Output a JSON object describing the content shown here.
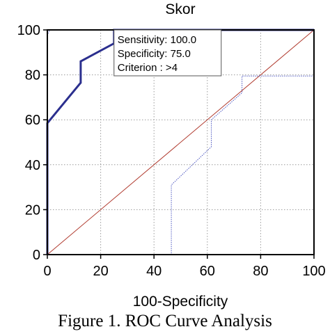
{
  "figure_caption": "Figure 1. ROC Curve Analysis",
  "chart_data": {
    "type": "line",
    "title": "Skor",
    "xlabel": "100-Specificity",
    "ylabel": "",
    "xlim": [
      0,
      100
    ],
    "ylim": [
      0,
      100
    ],
    "x_ticks": [
      0,
      20,
      40,
      60,
      80,
      100
    ],
    "y_ticks": [
      0,
      20,
      40,
      60,
      80,
      100
    ],
    "grid": true,
    "series": [
      {
        "role": "roc",
        "color": "#2b2f8e",
        "x": [
          0,
          0,
          12.5,
          12.5,
          25,
          25,
          100
        ],
        "y": [
          0,
          58.5,
          76.5,
          86,
          94,
          100,
          100
        ]
      },
      {
        "role": "ci-upper",
        "color": "#4a55c0",
        "x": [
          0,
          0,
          1,
          100
        ],
        "y": [
          0,
          98,
          100,
          100
        ]
      },
      {
        "role": "ci-lower",
        "color": "#4a55c0",
        "x": [
          0,
          46.5,
          46.5,
          61.5,
          61.5,
          73,
          73,
          100,
          100
        ],
        "y": [
          0,
          0,
          31,
          48,
          60,
          72,
          79.5,
          79.5,
          100
        ]
      },
      {
        "role": "reference",
        "color": "#b03a2e",
        "x": [
          0,
          100
        ],
        "y": [
          0,
          100
        ]
      }
    ],
    "annotation": {
      "lines": [
        "Sensitivity: 100.0",
        "Specificity: 75.0",
        "Criterion : >4"
      ],
      "anchor": [
        25,
        100
      ]
    }
  }
}
